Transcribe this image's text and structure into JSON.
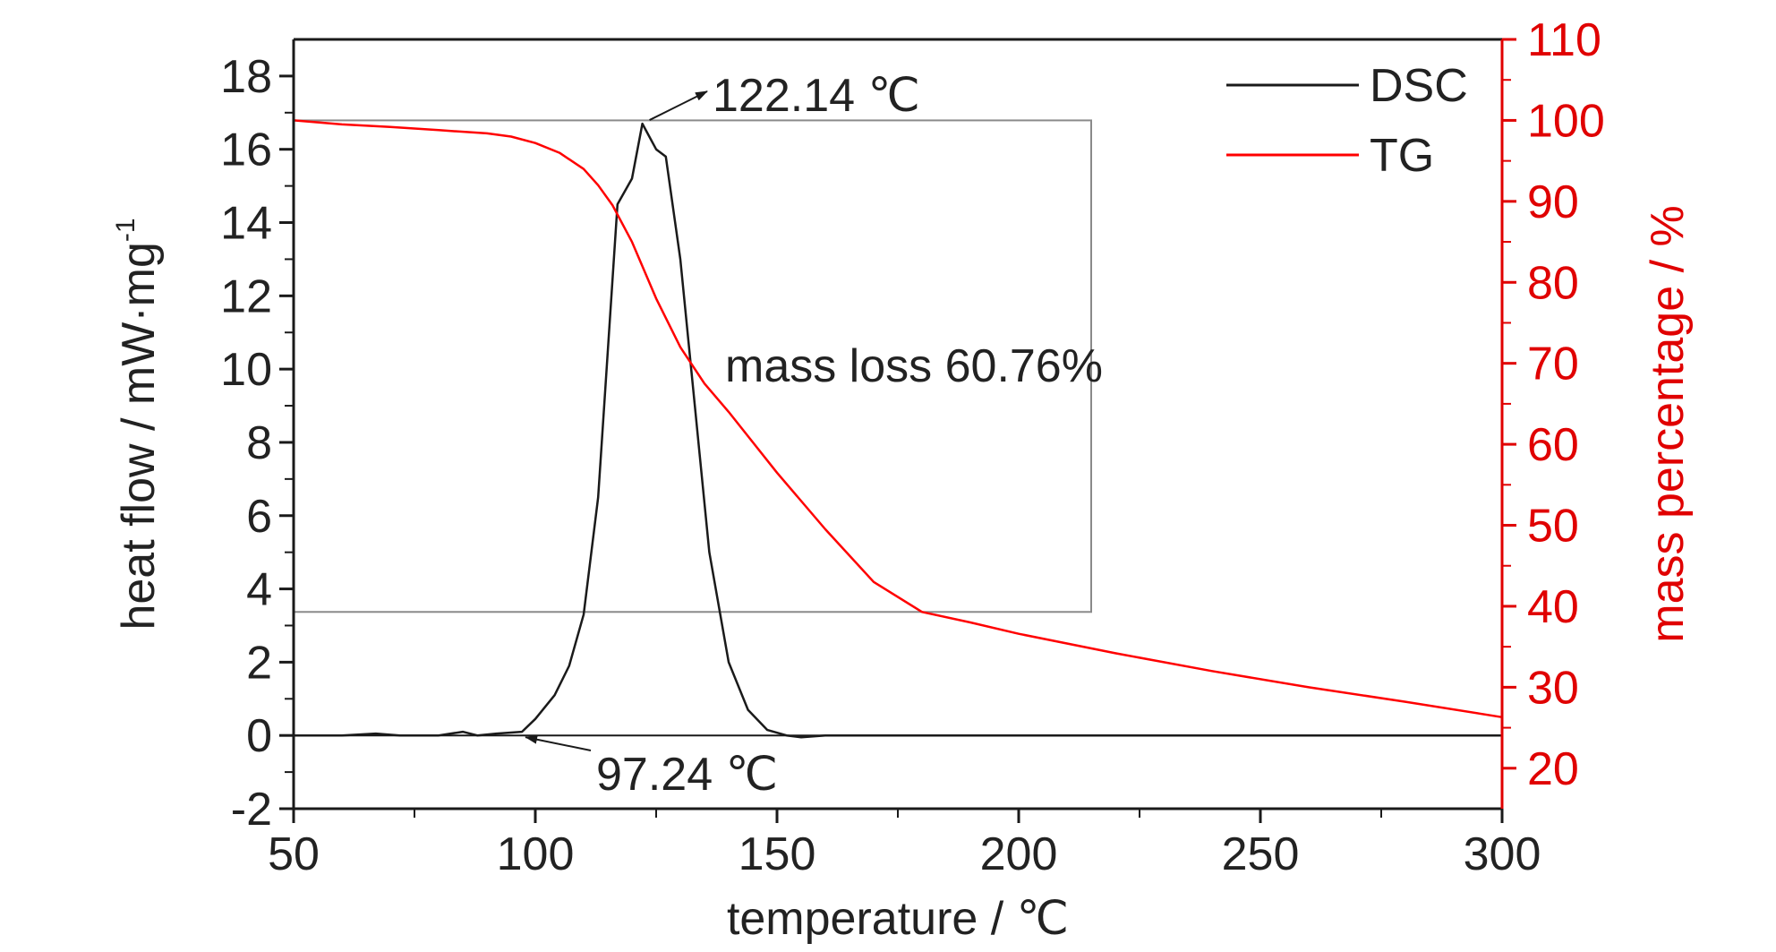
{
  "chart_data": {
    "type": "line",
    "xlabel": "temperature / ℃",
    "ylabel_left": "heat flow / mW·mg",
    "ylabel_left_sup": "-1",
    "ylabel_right": "mass percentage / %",
    "xlim": [
      50,
      300
    ],
    "ylim_left": [
      -2,
      19
    ],
    "ylim_right": [
      15,
      110
    ],
    "x_ticks": [
      50,
      100,
      150,
      200,
      250,
      300
    ],
    "y_left_ticks": [
      -2,
      0,
      2,
      4,
      6,
      8,
      10,
      12,
      14,
      16,
      18
    ],
    "y_right_ticks": [
      20,
      30,
      40,
      50,
      60,
      70,
      80,
      90,
      100,
      110
    ],
    "legend_position": "top-right",
    "grid": false,
    "series": [
      {
        "name": "DSC",
        "axis": "left",
        "color": "#1a1a1a",
        "x": [
          50,
          60,
          67,
          72,
          80,
          85,
          88,
          92,
          97.24,
          100,
          104,
          107,
          110,
          113,
          115,
          117,
          120,
          122.14,
          125,
          127,
          130,
          133,
          136,
          140,
          144,
          148,
          152,
          155,
          160,
          170,
          200,
          250,
          300
        ],
        "y": [
          0,
          0,
          0.05,
          0,
          0,
          0.1,
          0,
          0.05,
          0.1,
          0.45,
          1.1,
          1.9,
          3.3,
          6.5,
          10.5,
          14.5,
          15.2,
          16.7,
          16.0,
          15.8,
          13.0,
          9.0,
          5.0,
          2.0,
          0.7,
          0.15,
          0,
          -0.05,
          0,
          0,
          0,
          0,
          0
        ]
      },
      {
        "name": "TG",
        "axis": "right",
        "color": "#ff0000",
        "x": [
          50,
          60,
          70,
          80,
          90,
          95,
          100,
          105,
          110,
          113,
          116,
          120,
          125,
          130,
          135,
          140,
          150,
          160,
          170,
          180,
          190,
          200,
          220,
          240,
          260,
          280,
          300
        ],
        "y": [
          100,
          99.5,
          99.2,
          98.8,
          98.4,
          98.0,
          97.2,
          96.0,
          94.0,
          92.0,
          89.5,
          85.0,
          78.0,
          72.0,
          67.5,
          64.0,
          56.5,
          49.5,
          43.0,
          39.3,
          38.0,
          36.6,
          34.2,
          32.0,
          30.0,
          28.2,
          26.3
        ]
      }
    ],
    "annotations": [
      {
        "text": "122.14 ℃",
        "x": 122.14,
        "y": 16.7,
        "axis": "left"
      },
      {
        "text": "97.24 ℃",
        "x": 97.24,
        "y": 0.1,
        "axis": "left"
      },
      {
        "text": "mass loss 60.76%",
        "x": 133,
        "y": 10,
        "axis": "left"
      }
    ],
    "mass_loss_bracket": {
      "x_start": 50,
      "x_end": 215,
      "top_pct": 100,
      "bottom_pct": 39.3
    }
  }
}
